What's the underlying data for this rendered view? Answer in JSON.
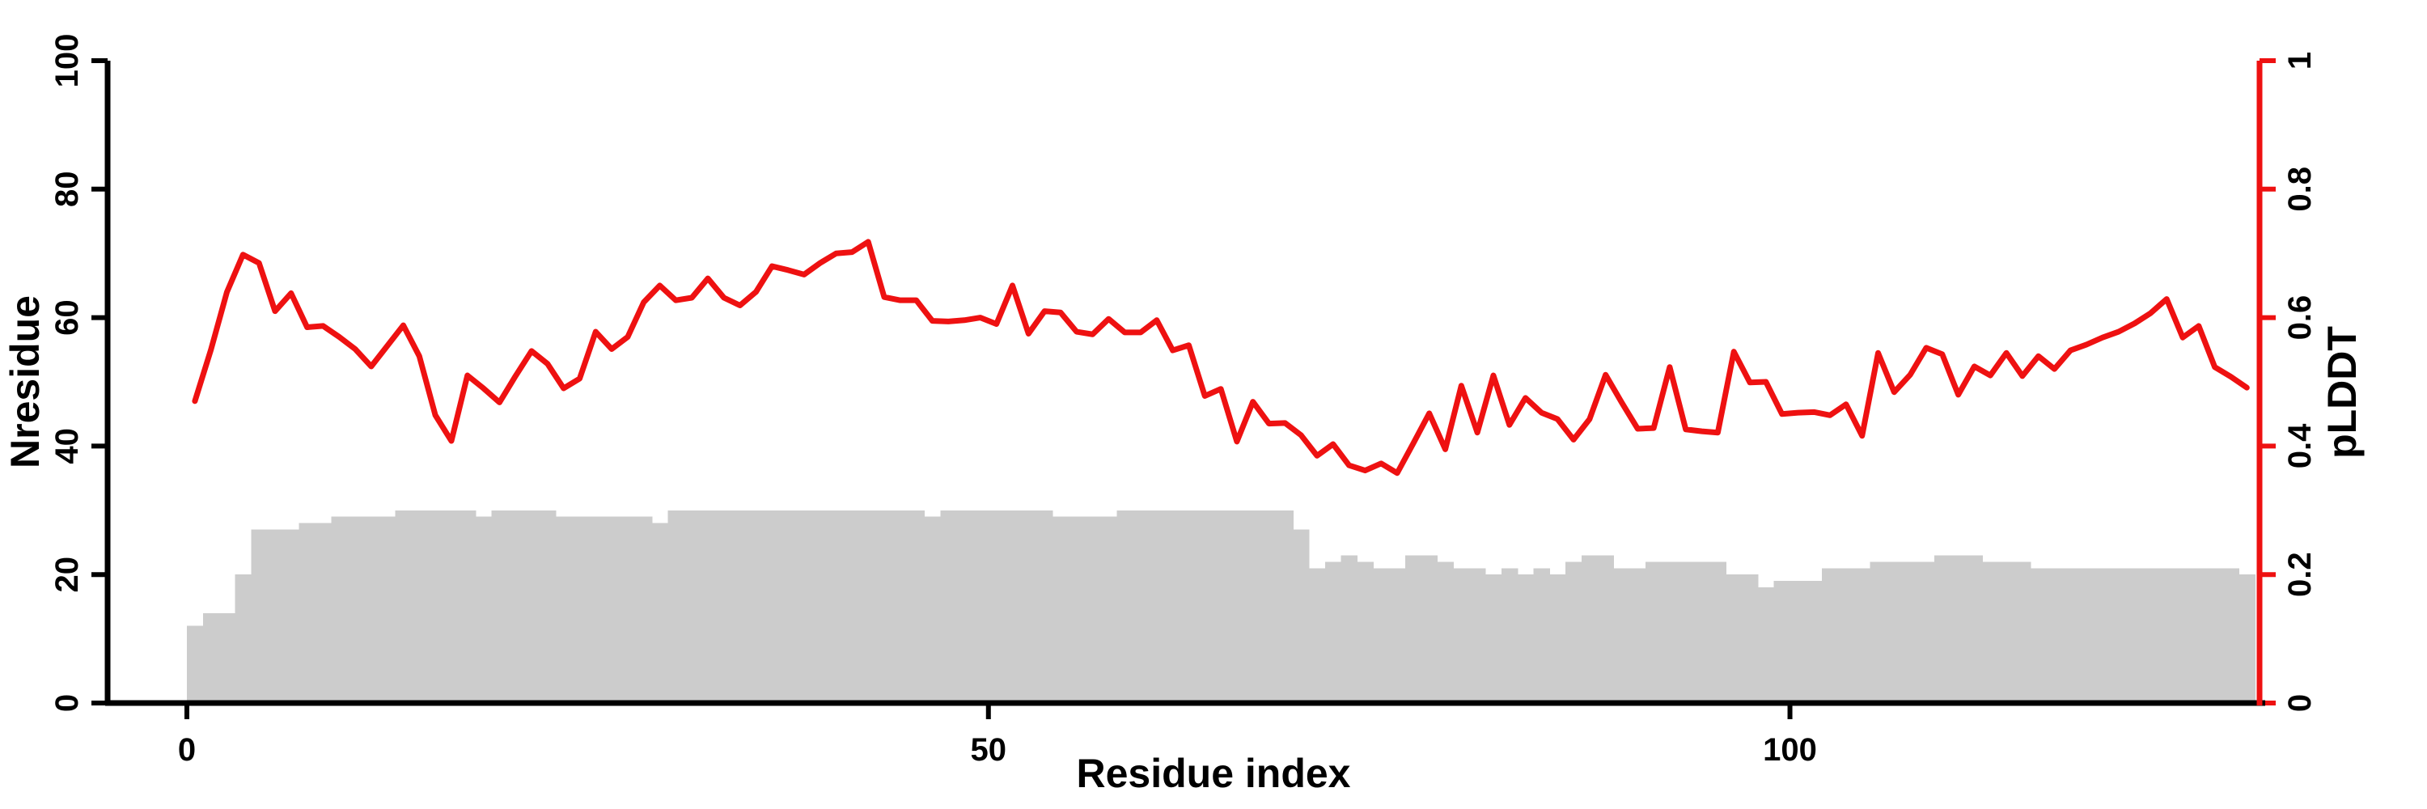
{
  "figure": {
    "background": "#ffffff",
    "bar_color": "#cccccc",
    "line_color": "#ee1111",
    "axis_color": "#000000"
  },
  "chart_data": {
    "type": "bar+line",
    "title": "",
    "grid": false,
    "legend": false,
    "x_axis": {
      "label": "Residue index",
      "tick_labels": [
        "0",
        "50",
        "100"
      ],
      "tick_values": [
        0,
        50,
        100
      ],
      "range": [
        0,
        129
      ]
    },
    "left_axis": {
      "label": "Nresidue",
      "tick_labels": [
        "0",
        "20",
        "40",
        "60",
        "80",
        "100"
      ],
      "tick_values": [
        0,
        20,
        40,
        60,
        80,
        100
      ],
      "range": [
        0,
        100
      ],
      "color": "#000000"
    },
    "right_axis": {
      "label": "pLDDT",
      "tick_labels": [
        "0",
        "0.2",
        "0.4",
        "0.6",
        "0.8",
        "1"
      ],
      "tick_values": [
        0,
        0.2,
        0.4,
        0.6,
        0.8,
        1
      ],
      "range": [
        0,
        1
      ],
      "color": "#ee1111"
    },
    "x_start": 0,
    "series": [
      {
        "name": "Nresidue",
        "type": "bar",
        "axis": "left",
        "color": "#cccccc",
        "values": [
          12,
          14,
          14,
          20,
          27,
          27,
          27,
          28,
          28,
          29,
          29,
          29,
          29,
          30,
          30,
          30,
          30,
          30,
          29,
          30,
          30,
          30,
          30,
          29,
          29,
          29,
          29,
          29,
          29,
          28,
          30,
          30,
          30,
          30,
          30,
          30,
          30,
          30,
          30,
          30,
          30,
          30,
          30,
          30,
          30,
          30,
          29,
          30,
          30,
          30,
          30,
          30,
          30,
          30,
          29,
          29,
          29,
          29,
          30,
          30,
          30,
          30,
          30,
          30,
          30,
          30,
          30,
          30,
          30,
          27,
          21,
          22,
          23,
          22,
          21,
          21,
          23,
          23,
          22,
          21,
          21,
          20,
          21,
          20,
          21,
          20,
          22,
          23,
          23,
          21,
          21,
          22,
          22,
          22,
          22,
          22,
          20,
          20,
          18,
          19,
          19,
          19,
          21,
          21,
          21,
          22,
          22,
          22,
          22,
          23,
          23,
          23,
          22,
          22,
          22,
          21,
          21,
          21,
          21,
          21,
          21,
          21,
          21,
          21,
          21,
          21,
          21,
          21,
          20
        ]
      },
      {
        "name": "pLDDT",
        "type": "line",
        "axis": "right",
        "color": "#ee1111",
        "values": [
          0.47,
          0.55,
          0.64,
          0.698,
          0.685,
          0.61,
          0.638,
          0.585,
          0.587,
          0.57,
          0.551,
          0.524,
          0.556,
          0.588,
          0.54,
          0.448,
          0.408,
          0.51,
          0.49,
          0.468,
          0.509,
          0.548,
          0.528,
          0.49,
          0.505,
          0.578,
          0.551,
          0.57,
          0.624,
          0.65,
          0.627,
          0.631,
          0.661,
          0.631,
          0.619,
          0.64,
          0.68,
          0.674,
          0.667,
          0.685,
          0.7,
          0.702,
          0.718,
          0.632,
          0.627,
          0.627,
          0.595,
          0.594,
          0.596,
          0.6,
          0.59,
          0.65,
          0.575,
          0.61,
          0.608,
          0.578,
          0.574,
          0.598,
          0.577,
          0.577,
          0.596,
          0.549,
          0.557,
          0.478,
          0.489,
          0.407,
          0.469,
          0.435,
          0.436,
          0.417,
          0.385,
          0.403,
          0.37,
          0.362,
          0.373,
          0.358,
          0.404,
          0.451,
          0.395,
          0.494,
          0.421,
          0.51,
          0.433,
          0.475,
          0.452,
          0.442,
          0.41,
          0.442,
          0.511,
          0.468,
          0.427,
          0.428,
          0.523,
          0.426,
          0.423,
          0.421,
          0.547,
          0.499,
          0.5,
          0.45,
          0.452,
          0.453,
          0.448,
          0.465,
          0.416,
          0.545,
          0.484,
          0.511,
          0.553,
          0.543,
          0.48,
          0.524,
          0.51,
          0.545,
          0.509,
          0.54,
          0.52,
          0.549,
          0.558,
          0.569,
          0.578,
          0.591,
          0.607,
          0.629,
          0.569,
          0.587,
          0.523,
          0.508,
          0.491
        ]
      }
    ]
  }
}
